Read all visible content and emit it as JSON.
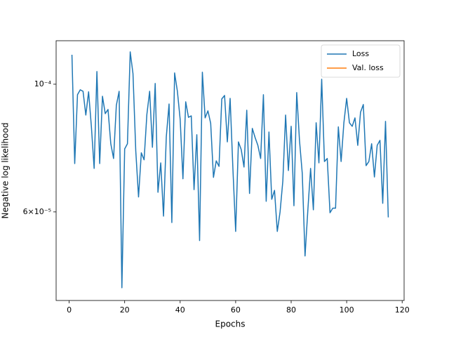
{
  "chart_data": {
    "type": "line",
    "xlabel": "Epochs",
    "ylabel": "Negative log likelihood",
    "x": [
      1,
      2,
      3,
      4,
      5,
      6,
      7,
      8,
      9,
      10,
      11,
      12,
      13,
      14,
      15,
      16,
      17,
      18,
      19,
      20,
      21,
      22,
      23,
      24,
      25,
      26,
      27,
      28,
      29,
      30,
      31,
      32,
      33,
      34,
      35,
      36,
      37,
      38,
      39,
      40,
      41,
      42,
      43,
      44,
      45,
      46,
      47,
      48,
      49,
      50,
      51,
      52,
      53,
      54,
      55,
      56,
      57,
      58,
      59,
      60,
      61,
      62,
      63,
      64,
      65,
      66,
      67,
      68,
      69,
      70,
      71,
      72,
      73,
      74,
      75,
      76,
      77,
      78,
      79,
      80,
      81,
      82,
      83,
      84,
      85,
      86,
      87,
      88,
      89,
      90,
      91,
      92,
      93,
      94,
      95,
      96,
      97,
      98,
      99,
      100,
      101,
      102,
      103,
      104,
      105,
      106,
      107,
      108,
      109,
      110,
      111,
      112,
      113,
      114,
      115
    ],
    "series": [
      {
        "name": "Loss",
        "color": "#1f77b4",
        "values": [
          0.0001125,
          7.28e-05,
          9.59e-05,
          9.78e-05,
          9.72e-05,
          8.84e-05,
          9.7e-05,
          8.45e-05,
          7.14e-05,
          0.0001052,
          7.28e-05,
          9.53e-05,
          8.89e-05,
          9.04e-05,
          7.88e-05,
          7.43e-05,
          9.19e-05,
          9.72e-05,
          4.43e-05,
          7.72e-05,
          7.88e-05,
          0.0001138,
          0.0001043,
          7.66e-05,
          6.37e-05,
          7.6e-05,
          7.39e-05,
          8.86e-05,
          9.72e-05,
          7.77e-05,
          0.0001003,
          6.49e-05,
          7.3e-05,
          5.9e-05,
          8.1e-05,
          9.24e-05,
          5.75e-05,
          0.0001046,
          9.72e-05,
          8.69e-05,
          6.85e-05,
          9.32e-05,
          8.76e-05,
          8.81e-05,
          6.56e-05,
          8.17e-05,
          5.35e-05,
          0.0001049,
          8.74e-05,
          8.99e-05,
          8.55e-05,
          6.89e-05,
          7.36e-05,
          7.2e-05,
          9.43e-05,
          9.56e-05,
          7.94e-05,
          9.45e-05,
          7.14e-05,
          5.55e-05,
          7.94e-05,
          7.7e-05,
          7.18e-05,
          9.01e-05,
          6.46e-05,
          8.38e-05,
          8.08e-05,
          7.83e-05,
          7.43e-05,
          9.59e-05,
          6.26e-05,
          8.26e-05,
          6.31e-05,
          6.54e-05,
          5.55e-05,
          6e-05,
          6.79e-05,
          8.84e-05,
          7.08e-05,
          8.45e-05,
          6.15e-05,
          9.67e-05,
          7.99e-05,
          7e-05,
          5.03e-05,
          6.03e-05,
          7.14e-05,
          6.05e-05,
          8.57e-05,
          7.3e-05,
          0.000102,
          7.34e-05,
          7.43e-05,
          5.98e-05,
          6.09e-05,
          6.09e-05,
          8.43e-05,
          7.34e-05,
          8.57e-05,
          9.45e-05,
          8.57e-05,
          8.45e-05,
          8.74e-05,
          7.83e-05,
          8.94e-05,
          9.22e-05,
          7.22e-05,
          7.34e-05,
          7.88e-05,
          6.9e-05,
          7.83e-05,
          7.99e-05,
          6.21e-05,
          8.62e-05,
          5.87e-05
        ]
      },
      {
        "name": "Val. loss",
        "color": "#ff7f0e",
        "values": [
          null,
          null,
          null,
          null,
          null,
          null,
          null,
          null,
          null,
          null,
          null,
          null,
          null,
          null,
          null,
          null,
          null,
          null,
          null,
          null,
          null,
          null,
          null,
          null,
          null,
          null,
          null,
          null,
          null,
          null,
          null,
          null,
          null,
          null,
          null,
          null,
          null,
          null,
          null,
          null,
          null,
          null,
          null,
          null,
          null,
          null,
          null,
          null,
          null,
          null,
          null,
          null,
          null,
          null,
          null,
          null,
          null,
          null,
          null,
          null,
          null,
          null,
          null,
          null,
          null,
          null,
          null,
          null,
          null,
          null,
          null,
          null,
          null,
          null,
          null,
          null,
          null,
          null,
          null,
          null,
          null,
          null,
          null,
          null,
          null,
          null,
          null,
          null,
          null,
          null,
          null,
          null,
          null,
          null,
          null,
          null,
          null,
          null,
          null,
          null,
          null,
          null,
          null,
          null,
          null,
          null,
          null,
          null,
          null,
          null,
          null,
          null,
          null,
          null,
          null
        ]
      }
    ],
    "xlim": [
      -4.7,
      120.7
    ],
    "xticks": [
      0,
      20,
      40,
      60,
      80,
      100,
      120
    ],
    "ylim": [
      4.21e-05,
      0.000119
    ],
    "ylog": true,
    "yticks": [
      {
        "value": 6e-05,
        "label": "6×10⁻⁵"
      },
      {
        "value": 0.0001,
        "label": "10⁻⁴"
      }
    ],
    "legend": "upper right"
  }
}
